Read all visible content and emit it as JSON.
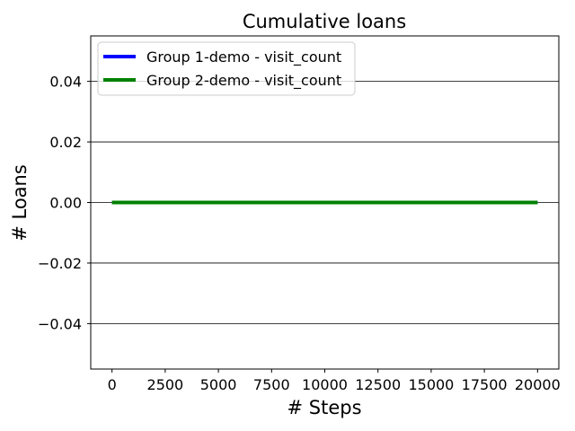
{
  "chart_data": {
    "type": "line",
    "title": "Cumulative loans",
    "xlabel": "# Steps",
    "ylabel": "# Loans",
    "xlim": [
      -1000,
      21000
    ],
    "ylim": [
      -0.055,
      0.055
    ],
    "xticks": [
      0,
      2500,
      5000,
      7500,
      10000,
      12500,
      15000,
      17500,
      20000
    ],
    "xtick_labels": [
      "0",
      "2500",
      "5000",
      "7500",
      "10000",
      "12500",
      "15000",
      "17500",
      "20000"
    ],
    "yticks": [
      -0.04,
      -0.02,
      0.0,
      0.02,
      0.04
    ],
    "ytick_labels": [
      "−0.04",
      "−0.02",
      "0.00",
      "0.02",
      "0.04"
    ],
    "grid": "horizontal",
    "legend_position": "top-left",
    "series": [
      {
        "name": "Group 1-demo - visit_count",
        "color": "#0000ff",
        "x": [
          0,
          20000
        ],
        "y": [
          0,
          0
        ]
      },
      {
        "name": "Group 2-demo - visit_count",
        "color": "#008000",
        "x": [
          0,
          20000
        ],
        "y": [
          0,
          0
        ]
      }
    ]
  }
}
